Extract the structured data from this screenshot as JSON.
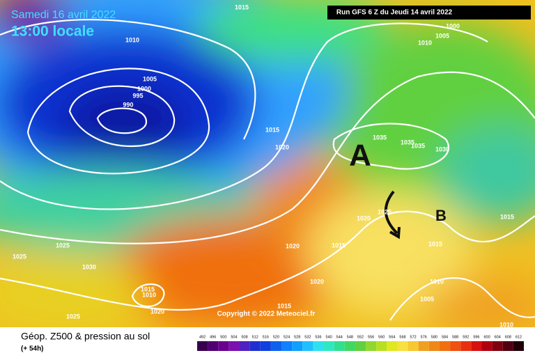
{
  "header": {
    "date": "Samedi 16 avril 2022",
    "time": "13:00 locale",
    "run": "Run GFS 6 Z du Jeudi 14 avril 2022"
  },
  "map": {
    "pressure_labels": [
      "1015",
      "1000",
      "1005",
      "1010",
      "1010",
      "1005",
      "1000",
      "995",
      "990",
      "1015",
      "1020",
      "1035",
      "1035",
      "1035",
      "1030",
      "1025",
      "1020",
      "1015",
      "1015",
      "1025",
      "1025",
      "1030",
      "1020",
      "1015",
      "1015",
      "1010",
      "1020",
      "1020",
      "1010",
      "1005",
      "1015",
      "1025",
      "1010"
    ],
    "high": "A",
    "low": "B",
    "copyright": "Copyright © 2022 Meteociel.fr"
  },
  "legend": {
    "title": "Géop. Z500 & pression au sol",
    "subtitle": "(+ 54h)",
    "scale": [
      "492",
      "496",
      "500",
      "504",
      "508",
      "512",
      "516",
      "520",
      "524",
      "528",
      "532",
      "536",
      "540",
      "544",
      "548",
      "552",
      "556",
      "560",
      "564",
      "568",
      "572",
      "576",
      "580",
      "584",
      "588",
      "592",
      "596",
      "600",
      "604",
      "608",
      "612"
    ]
  }
}
